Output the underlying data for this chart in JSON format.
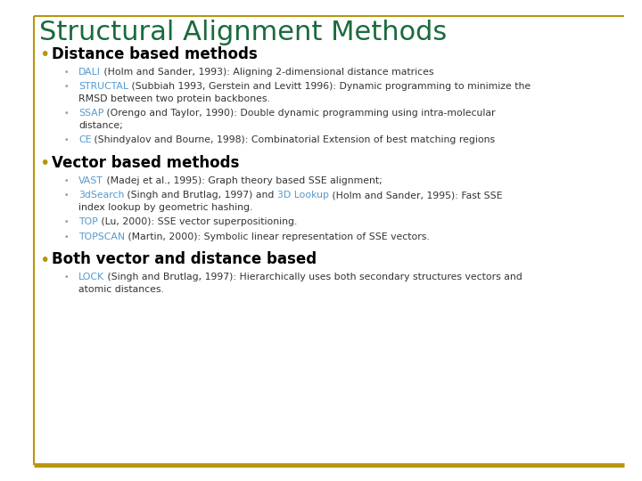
{
  "title": "Structural Alignment Methods",
  "title_color": "#1a6b3c",
  "title_fontsize": 22,
  "bg_color": "#ffffff",
  "border_color": "#b8960a",
  "bullet_color": "#b8960a",
  "section_color": "#000000",
  "section_fontsize": 12,
  "link_color": "#5599cc",
  "body_color": "#333333",
  "body_fontsize": 7.8,
  "sections": [
    {
      "title": "Distance based methods",
      "items": [
        {
          "link": "DALI",
          "rest": " (Holm and Sander, 1993): Aligning 2-dimensional distance matrices",
          "line2": null
        },
        {
          "link": "STRUCTAL",
          "rest": " (Subbiah 1993, Gerstein and Levitt 1996): Dynamic programming to minimize the",
          "line2": "RMSD between two protein backbones."
        },
        {
          "link": "SSAP",
          "rest": " (Orengo and Taylor, 1990): Double dynamic programming using intra-molecular",
          "line2": "distance;"
        },
        {
          "link": "CE",
          "rest": " (Shindyalov and Bourne, 1998): Combinatorial Extension of best matching regions",
          "line2": null
        }
      ]
    },
    {
      "title": "Vector based methods",
      "items": [
        {
          "link": "VAST",
          "rest": " (Madej et al., 1995): Graph theory based SSE alignment;",
          "line2": null
        },
        {
          "link": "3dSearch",
          "rest": " (Singh and Brutlag, 1997) and ",
          "link2": "3D Lookup",
          "rest2": " (Holm and Sander, 1995): Fast SSE",
          "line2": "index lookup by geometric hashing."
        },
        {
          "link": "TOP",
          "rest": " (Lu, 2000): SSE vector superpositioning.",
          "line2": null
        },
        {
          "link": "TOPSCAN",
          "rest": " (Martin, 2000): Symbolic linear representation of SSE vectors.",
          "line2": null
        }
      ]
    },
    {
      "title": "Both vector and distance based",
      "items": [
        {
          "link": "LOCK",
          "rest": " (Singh and Brutlag, 1997): Hierarchically uses both secondary structures vectors and",
          "line2": "atomic distances."
        }
      ]
    }
  ]
}
